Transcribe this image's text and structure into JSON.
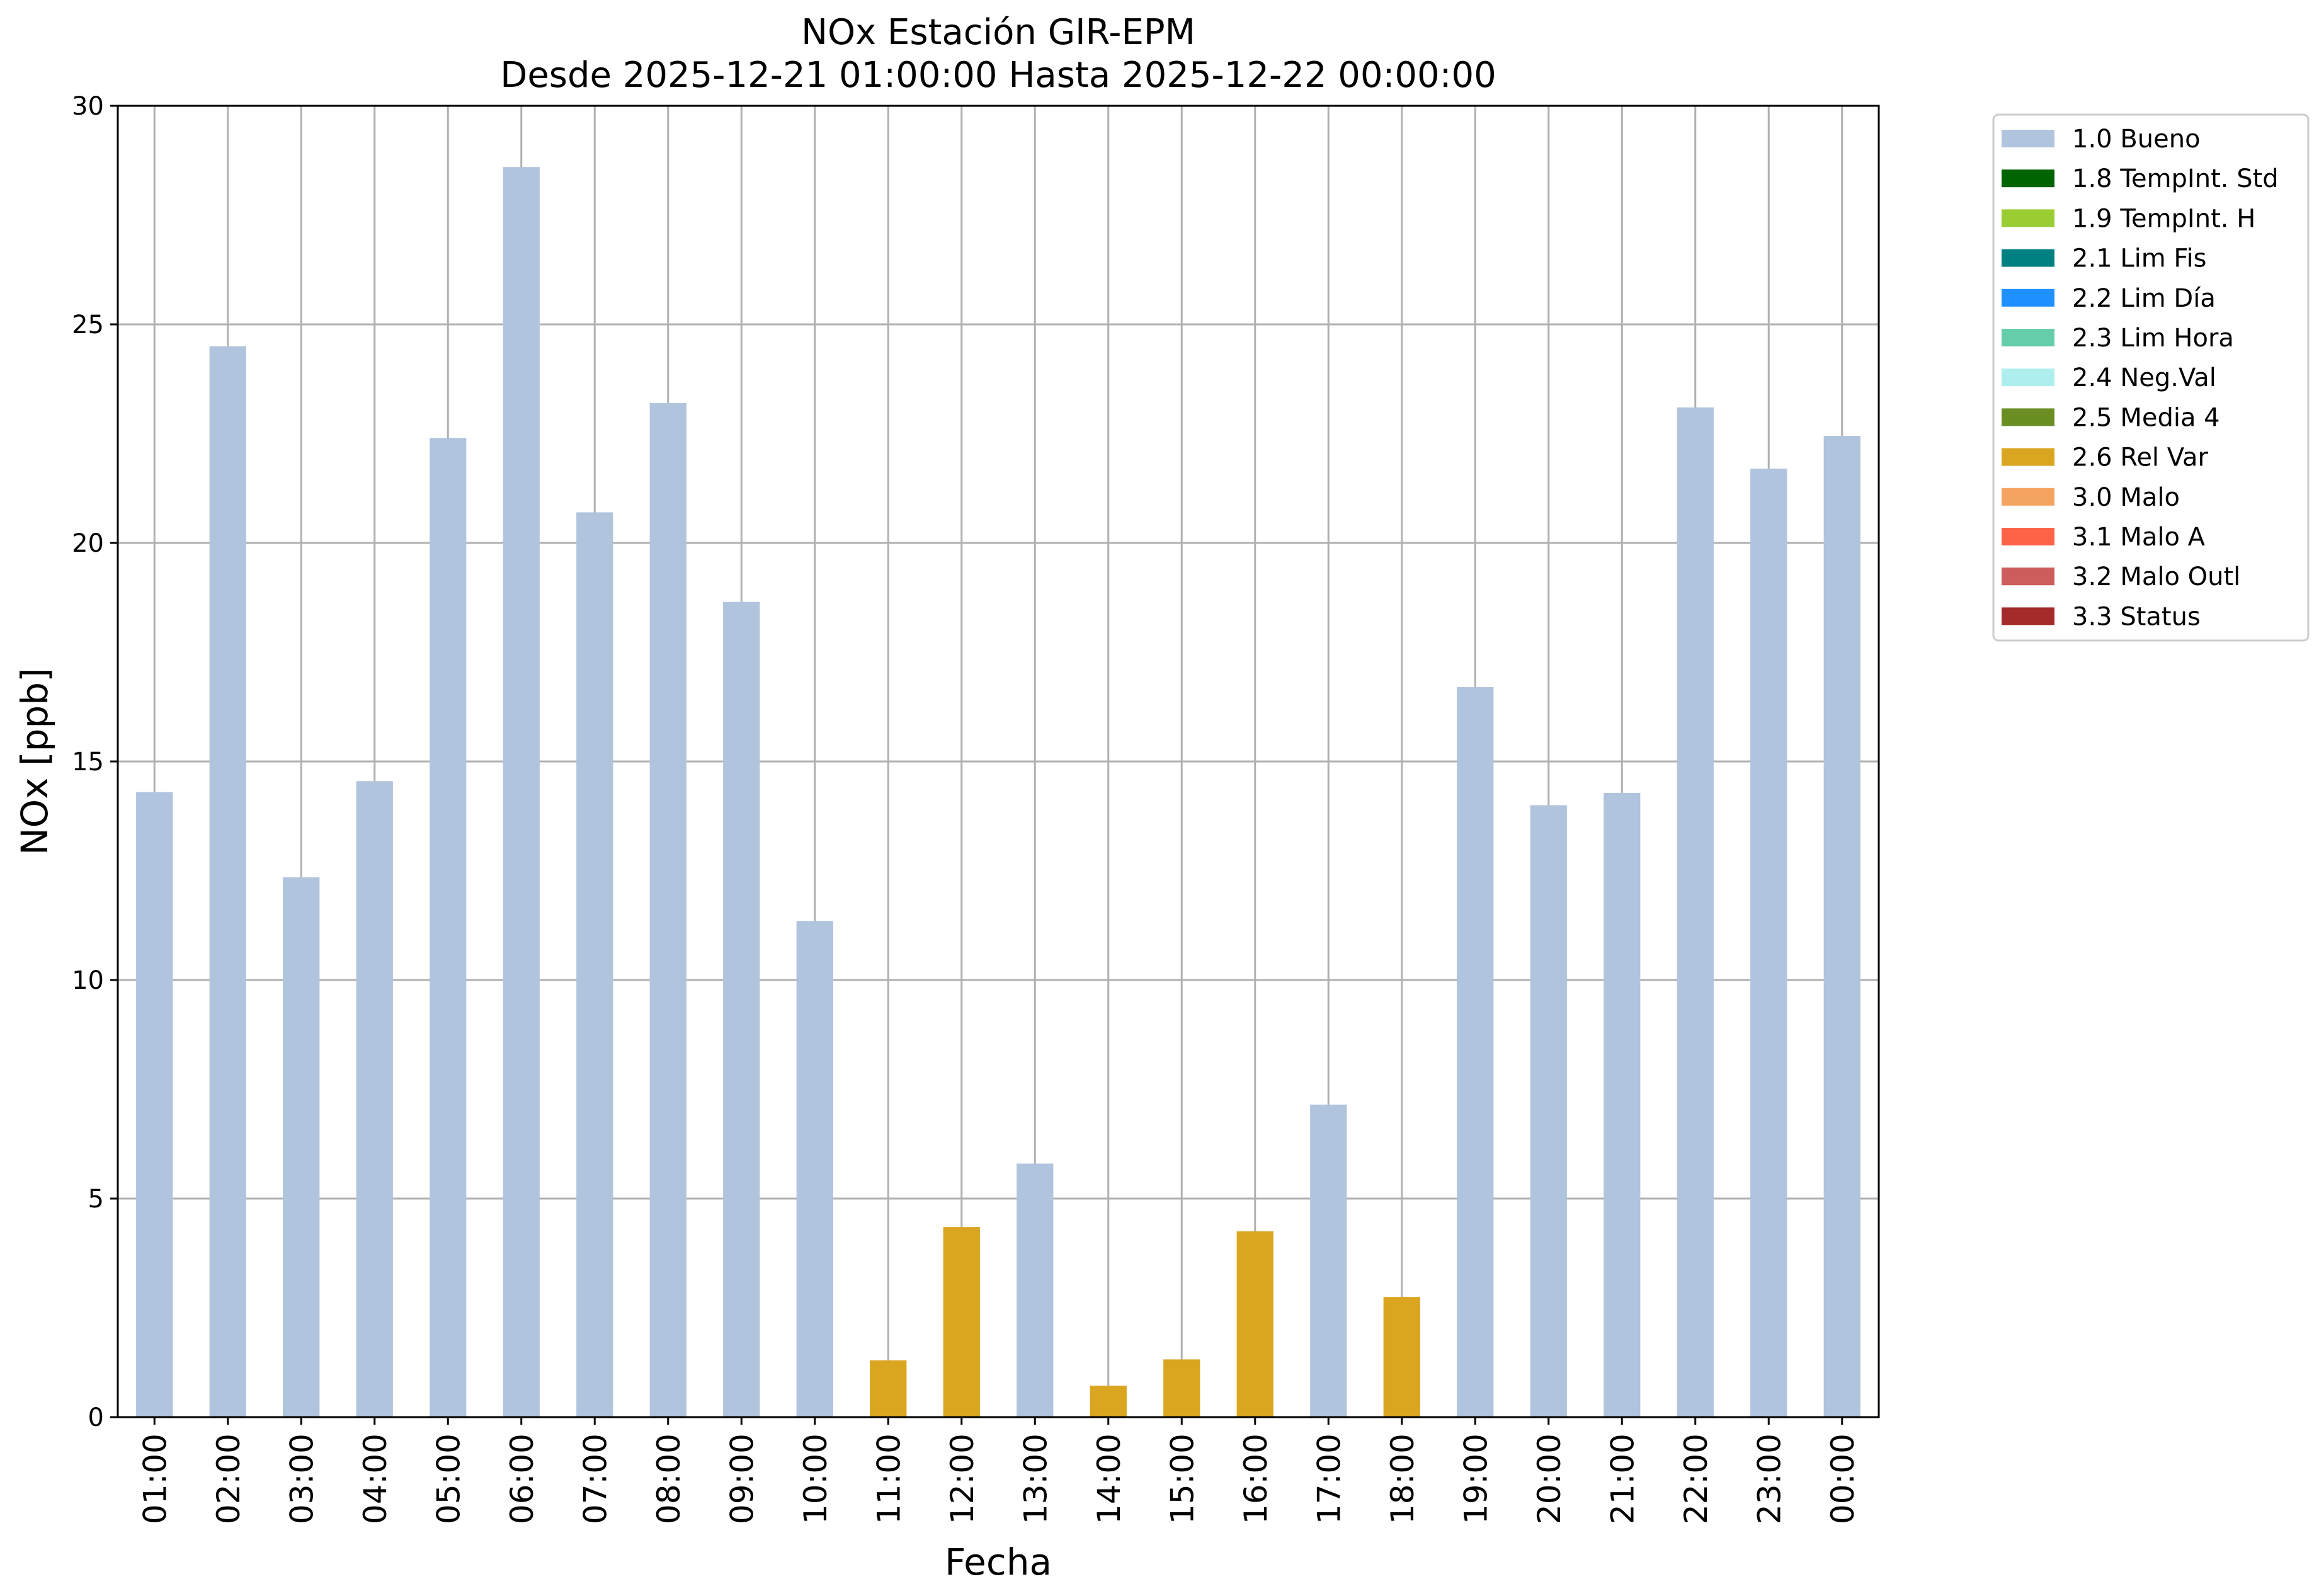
{
  "chart_data": {
    "type": "bar",
    "title": "NOx Estación GIR-EPM",
    "subtitle": "Desde 2025-12-21 01:00:00 Hasta 2025-12-22 00:00:00",
    "xlabel": "Fecha",
    "ylabel": "NOx [ppb]",
    "ylim": [
      0,
      30
    ],
    "yticks": [
      0,
      5,
      10,
      15,
      20,
      25,
      30
    ],
    "grid": true,
    "legend_position": "outside-top-right",
    "categories": [
      "01:00",
      "02:00",
      "03:00",
      "04:00",
      "05:00",
      "06:00",
      "07:00",
      "08:00",
      "09:00",
      "10:00",
      "11:00",
      "12:00",
      "13:00",
      "14:00",
      "15:00",
      "16:00",
      "17:00",
      "18:00",
      "19:00",
      "20:00",
      "21:00",
      "22:00",
      "23:00",
      "00:00"
    ],
    "values": [
      14.3,
      24.5,
      12.35,
      14.55,
      22.4,
      28.6,
      20.7,
      23.2,
      18.65,
      11.35,
      1.3,
      4.35,
      5.8,
      0.72,
      1.32,
      4.25,
      7.15,
      2.75,
      16.7,
      14.0,
      14.28,
      23.1,
      21.7,
      22.45
    ],
    "flags": [
      "1.0 Bueno",
      "1.0 Bueno",
      "1.0 Bueno",
      "1.0 Bueno",
      "1.0 Bueno",
      "1.0 Bueno",
      "1.0 Bueno",
      "1.0 Bueno",
      "1.0 Bueno",
      "1.0 Bueno",
      "2.6 Rel Var",
      "2.6 Rel Var",
      "1.0 Bueno",
      "2.6 Rel Var",
      "2.6 Rel Var",
      "2.6 Rel Var",
      "1.0 Bueno",
      "2.6 Rel Var",
      "1.0 Bueno",
      "1.0 Bueno",
      "1.0 Bueno",
      "1.0 Bueno",
      "1.0 Bueno",
      "1.0 Bueno"
    ],
    "legend": [
      {
        "label": "1.0 Bueno",
        "color": "#b0c4de"
      },
      {
        "label": "1.8 TempInt. Std",
        "color": "#006400"
      },
      {
        "label": "1.9 TempInt. H",
        "color": "#9acd32"
      },
      {
        "label": "2.1 Lim Fis",
        "color": "#008080"
      },
      {
        "label": "2.2 Lim Día",
        "color": "#1e90ff"
      },
      {
        "label": "2.3 Lim Hora",
        "color": "#66cdaa"
      },
      {
        "label": "2.4 Neg.Val",
        "color": "#afeeee"
      },
      {
        "label": "2.5 Media 4",
        "color": "#6b8e23"
      },
      {
        "label": "2.6 Rel Var",
        "color": "#daa520"
      },
      {
        "label": "3.0 Malo",
        "color": "#f4a460"
      },
      {
        "label": "3.1 Malo A",
        "color": "#ff6347"
      },
      {
        "label": "3.2 Malo Outl",
        "color": "#cd5c5c"
      },
      {
        "label": "3.3 Status",
        "color": "#a52a2a"
      }
    ]
  }
}
